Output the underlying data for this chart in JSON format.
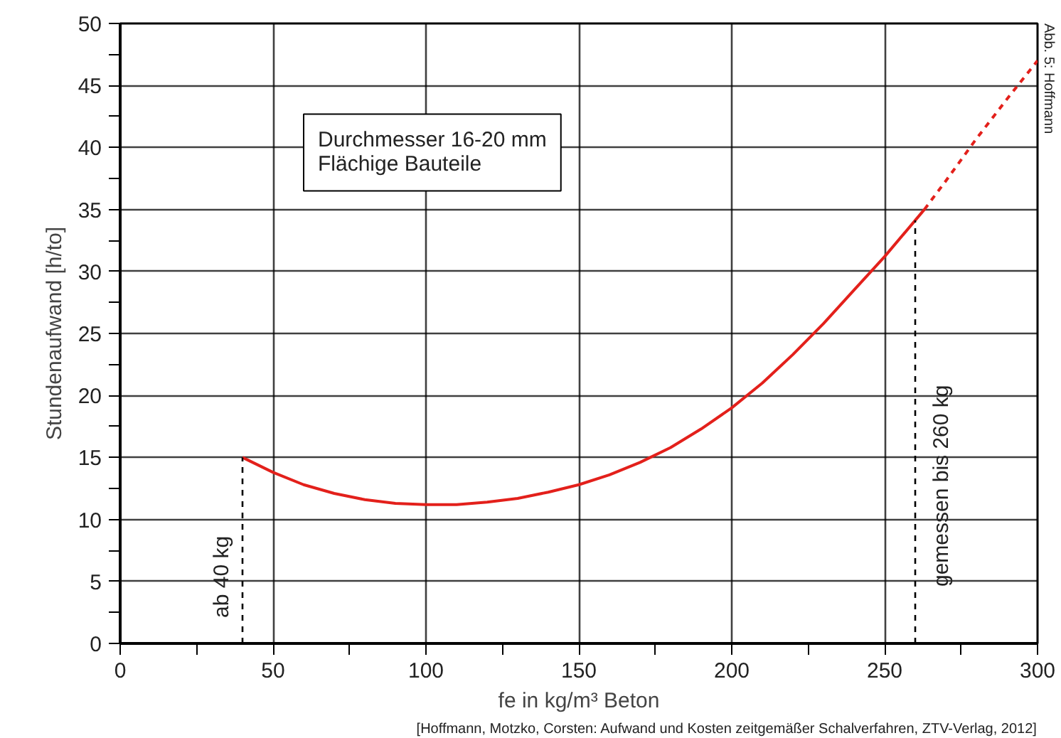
{
  "chart_data": {
    "type": "line",
    "xlabel": "fe in kg/m³ Beton",
    "ylabel": "Stundenaufwand [h/to]",
    "xlim": [
      0,
      300
    ],
    "ylim": [
      0,
      50
    ],
    "xticks": [
      0,
      {
        "value": 25,
        "label": null
      },
      50,
      {
        "value": 75,
        "label": null
      },
      100,
      {
        "value": 125,
        "label": null
      },
      150,
      {
        "value": 175,
        "label": null
      },
      200,
      {
        "value": 225,
        "label": null
      },
      250,
      {
        "value": 275,
        "label": null
      },
      300
    ],
    "yticks": [
      0,
      {
        "value": 2.5,
        "label": null
      },
      5,
      {
        "value": 7.5,
        "label": null
      },
      10,
      {
        "value": 12.5,
        "label": null
      },
      15,
      {
        "value": 17.5,
        "label": null
      },
      20,
      {
        "value": 22.5,
        "label": null
      },
      25,
      {
        "value": 27.5,
        "label": null
      },
      30,
      {
        "value": 32.5,
        "label": null
      },
      35,
      {
        "value": 37.5,
        "label": null
      },
      40,
      {
        "value": 42.5,
        "label": null
      },
      45,
      {
        "value": 47.5,
        "label": null
      },
      50
    ],
    "grid": true,
    "marker": "none",
    "series": [
      {
        "color": "#e3201b",
        "line_style": "solid",
        "x": [
          40,
          50,
          60,
          70,
          80,
          90,
          100,
          110,
          120,
          130,
          140,
          150,
          160,
          170,
          180,
          190,
          200,
          210,
          220,
          230,
          240,
          250,
          263
        ],
        "values": [
          15,
          13.8,
          12.8,
          12.1,
          11.6,
          11.3,
          11.2,
          11.2,
          11.4,
          11.7,
          12.2,
          12.8,
          13.6,
          14.6,
          15.8,
          17.3,
          19,
          21,
          23.3,
          25.8,
          28.5,
          31.2,
          35
        ]
      },
      {
        "color": "#e3201b",
        "line_style": "dashed",
        "x": [
          263,
          270,
          280,
          290,
          300
        ],
        "values": [
          35,
          37.3,
          40.7,
          43.9,
          47
        ]
      }
    ],
    "ref_lines": [
      {
        "axis": "x",
        "value": 40,
        "label": "ab 40 kg",
        "line_style": "dashed",
        "color": "#000000"
      },
      {
        "axis": "x",
        "value": 260,
        "label": "gemessen bis 260 kg",
        "line_style": "dashed",
        "color": "#000000"
      }
    ],
    "annotations": [
      "Durchmesser 16-20 mm\nFlächige Bauteile",
      "[Hoffmann, Motzko, Corsten: Aufwand und Kosten zeitgemäßer Schalverfahren, ZTV-Verlag, 2012]",
      "Abb. 5: Hoffmann"
    ]
  }
}
